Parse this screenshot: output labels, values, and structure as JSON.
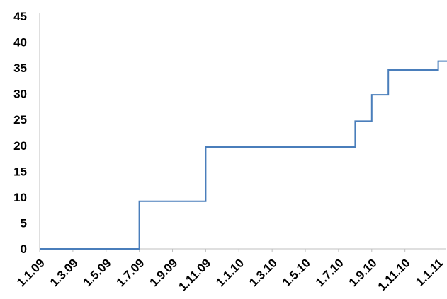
{
  "chart_data": {
    "type": "line",
    "step": true,
    "title": "",
    "xlabel": "",
    "ylabel": "",
    "ylim": [
      0,
      45
    ],
    "yticks": [
      "0",
      "5",
      "10",
      "15",
      "20",
      "25",
      "30",
      "35",
      "40",
      "45"
    ],
    "xlim": [
      "1.1.09",
      "1.3.11"
    ],
    "xticks": [
      "1.1.09",
      "1.3.09",
      "1.5.09",
      "1.7.09",
      "1.9.09",
      "1.11.09",
      "1.1.10",
      "1.3.10",
      "1.5.10",
      "1.7.10",
      "1.9.10",
      "1.11.10",
      "1.1.11"
    ],
    "grid": false,
    "legend": "none",
    "series": [
      {
        "color": "#4a7ebb",
        "points": [
          {
            "x": "1.1.09",
            "y": 0
          },
          {
            "x": "1.7.09",
            "y": 0
          },
          {
            "x": "1.7.09",
            "y": 9.2
          },
          {
            "x": "1.11.09",
            "y": 9.2
          },
          {
            "x": "1.11.09",
            "y": 19.7
          },
          {
            "x": "1.8.10",
            "y": 19.7
          },
          {
            "x": "1.8.10",
            "y": 24.7
          },
          {
            "x": "1.9.10",
            "y": 24.7
          },
          {
            "x": "1.9.10",
            "y": 29.8
          },
          {
            "x": "1.10.10",
            "y": 29.8
          },
          {
            "x": "1.10.10",
            "y": 34.6
          },
          {
            "x": "1.1.11",
            "y": 34.6
          },
          {
            "x": "1.1.11",
            "y": 36.3
          },
          {
            "x": "1.3.11",
            "y": 36.3
          }
        ]
      }
    ]
  }
}
